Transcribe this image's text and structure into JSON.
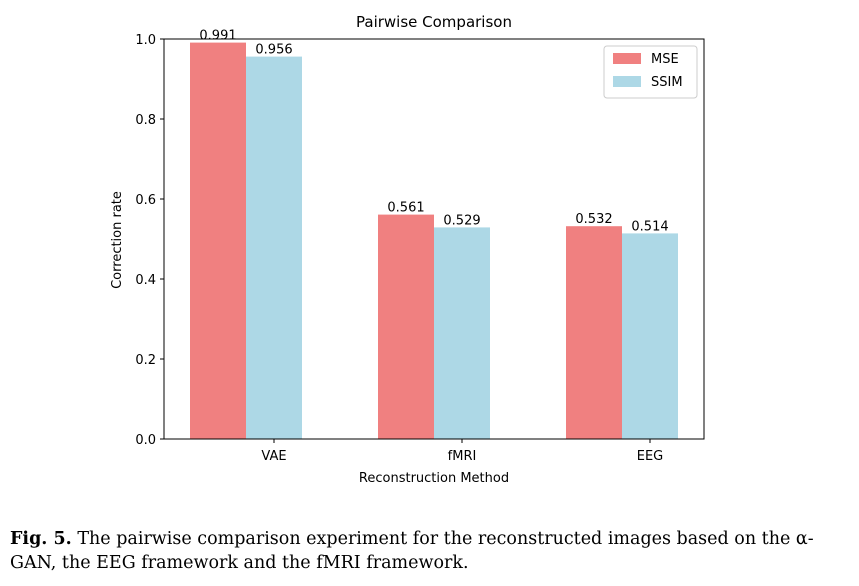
{
  "chart_data": {
    "type": "bar",
    "title": "Pairwise Comparison",
    "xlabel": "Reconstruction Method",
    "ylabel": "Correction rate",
    "categories": [
      "VAE",
      "fMRI",
      "EEG"
    ],
    "series": [
      {
        "name": "MSE",
        "values": [
          0.991,
          0.561,
          0.532
        ],
        "color": "#f08080"
      },
      {
        "name": "SSIM",
        "values": [
          0.956,
          0.529,
          0.514
        ],
        "color": "#add8e6"
      }
    ],
    "data_labels": [
      [
        "0.991",
        "0.561",
        "0.532"
      ],
      [
        "0.956",
        "0.529",
        "0.514"
      ]
    ],
    "ylim": [
      0.0,
      1.0
    ],
    "yticks": [
      0.0,
      0.2,
      0.4,
      0.6,
      0.8,
      1.0
    ],
    "ytick_labels": [
      "0.0",
      "0.2",
      "0.4",
      "0.6",
      "0.8",
      "1.0"
    ],
    "legend_position": "top-right",
    "grid": false
  },
  "caption": {
    "lead": "Fig. 5.",
    "text": "The pairwise comparison experiment for the reconstructed images based on the α-GAN, the EEG framework and the fMRI framework."
  }
}
